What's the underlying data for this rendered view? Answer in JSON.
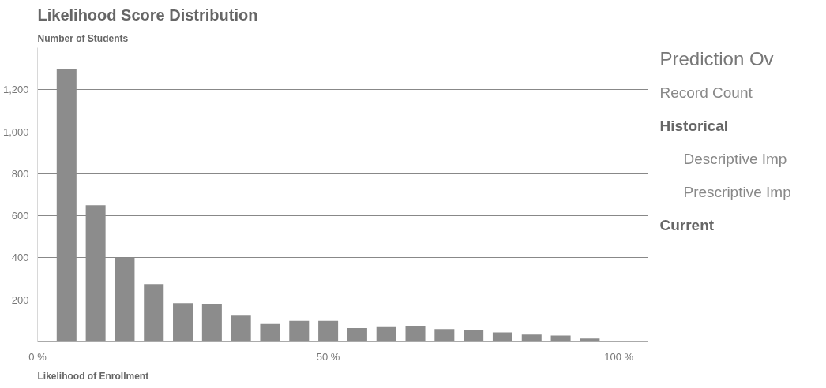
{
  "chart_data": [
    {
      "type": "bar",
      "title": "Likelihood Score Distribution",
      "ylabel": "Number of Students",
      "xlabel": "Likelihood of Enrollment",
      "x": [
        5,
        10,
        15,
        20,
        25,
        30,
        35,
        40,
        45,
        50,
        55,
        60,
        65,
        70,
        75,
        80,
        85,
        90,
        95
      ],
      "values": [
        1300,
        650,
        400,
        275,
        185,
        180,
        125,
        85,
        100,
        100,
        66,
        70,
        77,
        61,
        54,
        45,
        35,
        30,
        16
      ],
      "color": "#8c8c8c",
      "xlim": [
        0,
        105
      ],
      "xticks": [
        {
          "value": 0,
          "label": "0 %"
        },
        {
          "value": 50,
          "label": "50 %"
        },
        {
          "value": 100,
          "label": "100 %"
        }
      ],
      "ylim": [
        0,
        1400
      ],
      "yticks": [
        200,
        400,
        600,
        800,
        {
          "value": 1000,
          "label": "1,000"
        },
        {
          "value": 1200,
          "label": "1,200"
        }
      ],
      "grid": "y"
    },
    {
      "type": "other",
      "title": "Prediction Ov",
      "annotations": [
        "Record Count",
        "Historical",
        "Descriptive Imp",
        "Prescriptive Imp",
        "Current"
      ]
    }
  ]
}
